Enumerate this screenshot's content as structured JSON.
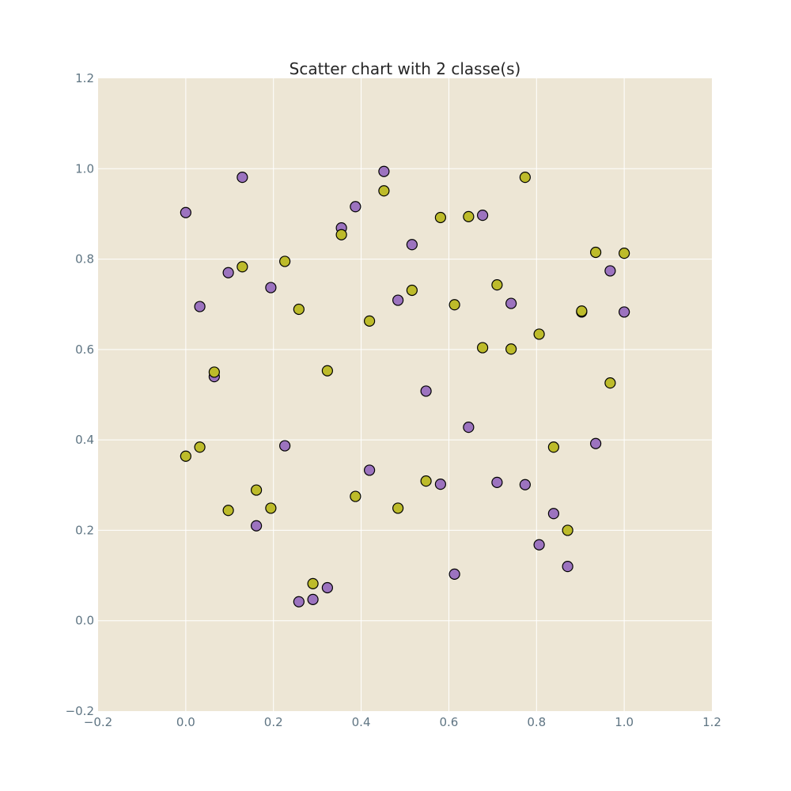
{
  "chart_data": {
    "type": "scatter",
    "title": "Scatter chart with 2 classe(s)",
    "xlabel": "",
    "ylabel": "",
    "xlim": [
      -0.2,
      1.2
    ],
    "ylim": [
      -0.2,
      1.2
    ],
    "x_ticks": [
      "−0.2",
      "0.0",
      "0.2",
      "0.4",
      "0.6",
      "0.8",
      "1.0",
      "1.2"
    ],
    "y_ticks": [
      "−0.2",
      "0.0",
      "0.2",
      "0.4",
      "0.6",
      "0.8",
      "1.0",
      "1.2"
    ],
    "grid": true,
    "legend": "none",
    "colors": {
      "plot_background": "#ede6d5",
      "grid": "#ffffff",
      "marker_edge": "#000000"
    },
    "series": [
      {
        "color": "#9c73bf",
        "points": [
          [
            0.0,
            0.903
          ],
          [
            0.032,
            0.695
          ],
          [
            0.065,
            0.54
          ],
          [
            0.097,
            0.77
          ],
          [
            0.129,
            0.981
          ],
          [
            0.161,
            0.21
          ],
          [
            0.194,
            0.737
          ],
          [
            0.226,
            0.387
          ],
          [
            0.258,
            0.042
          ],
          [
            0.29,
            0.047
          ],
          [
            0.323,
            0.073
          ],
          [
            0.355,
            0.869
          ],
          [
            0.387,
            0.916
          ],
          [
            0.419,
            0.333
          ],
          [
            0.452,
            0.994
          ],
          [
            0.484,
            0.709
          ],
          [
            0.516,
            0.832
          ],
          [
            0.548,
            0.508
          ],
          [
            0.581,
            0.302
          ],
          [
            0.613,
            0.103
          ],
          [
            0.645,
            0.428
          ],
          [
            0.677,
            0.897
          ],
          [
            0.71,
            0.306
          ],
          [
            0.742,
            0.702
          ],
          [
            0.774,
            0.301
          ],
          [
            0.806,
            0.168
          ],
          [
            0.839,
            0.237
          ],
          [
            0.871,
            0.12
          ],
          [
            0.903,
            0.683
          ],
          [
            0.935,
            0.392
          ],
          [
            0.968,
            0.774
          ],
          [
            1.0,
            0.683
          ]
        ]
      },
      {
        "color": "#bdbb2a",
        "points": [
          [
            0.0,
            0.364
          ],
          [
            0.032,
            0.384
          ],
          [
            0.065,
            0.55
          ],
          [
            0.097,
            0.244
          ],
          [
            0.129,
            0.783
          ],
          [
            0.161,
            0.289
          ],
          [
            0.194,
            0.249
          ],
          [
            0.226,
            0.795
          ],
          [
            0.258,
            0.689
          ],
          [
            0.29,
            0.082
          ],
          [
            0.323,
            0.553
          ],
          [
            0.355,
            0.854
          ],
          [
            0.387,
            0.275
          ],
          [
            0.419,
            0.663
          ],
          [
            0.452,
            0.951
          ],
          [
            0.484,
            0.249
          ],
          [
            0.516,
            0.731
          ],
          [
            0.548,
            0.309
          ],
          [
            0.581,
            0.892
          ],
          [
            0.613,
            0.699
          ],
          [
            0.645,
            0.894
          ],
          [
            0.677,
            0.604
          ],
          [
            0.71,
            0.743
          ],
          [
            0.742,
            0.601
          ],
          [
            0.774,
            0.981
          ],
          [
            0.806,
            0.634
          ],
          [
            0.839,
            0.384
          ],
          [
            0.871,
            0.2
          ],
          [
            0.903,
            0.685
          ],
          [
            0.935,
            0.815
          ],
          [
            0.968,
            0.526
          ],
          [
            1.0,
            0.813
          ]
        ]
      }
    ]
  }
}
